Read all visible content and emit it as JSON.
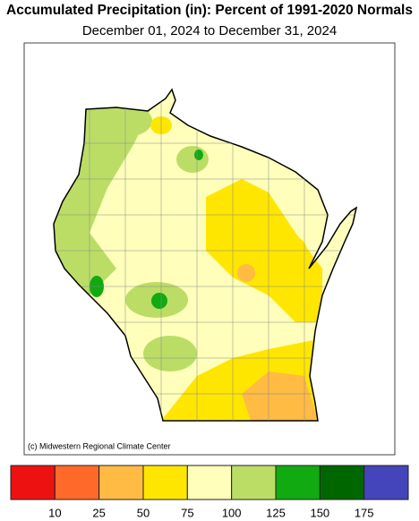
{
  "header": {
    "title": "Accumulated Precipitation (in): Percent of 1991-2020 Normals",
    "subtitle": "December 01, 2024 to December 31, 2024"
  },
  "map": {
    "credit": "(c) Midwestern Regional Climate Center"
  },
  "legend": {
    "colors": [
      "#ee1111",
      "#ff6a2a",
      "#ffbb44",
      "#ffe600",
      "#ffffbb",
      "#bbdd66",
      "#11aa11",
      "#006600",
      "#4444bb"
    ],
    "ticks": [
      10,
      25,
      50,
      75,
      100,
      125,
      150,
      175
    ]
  }
}
